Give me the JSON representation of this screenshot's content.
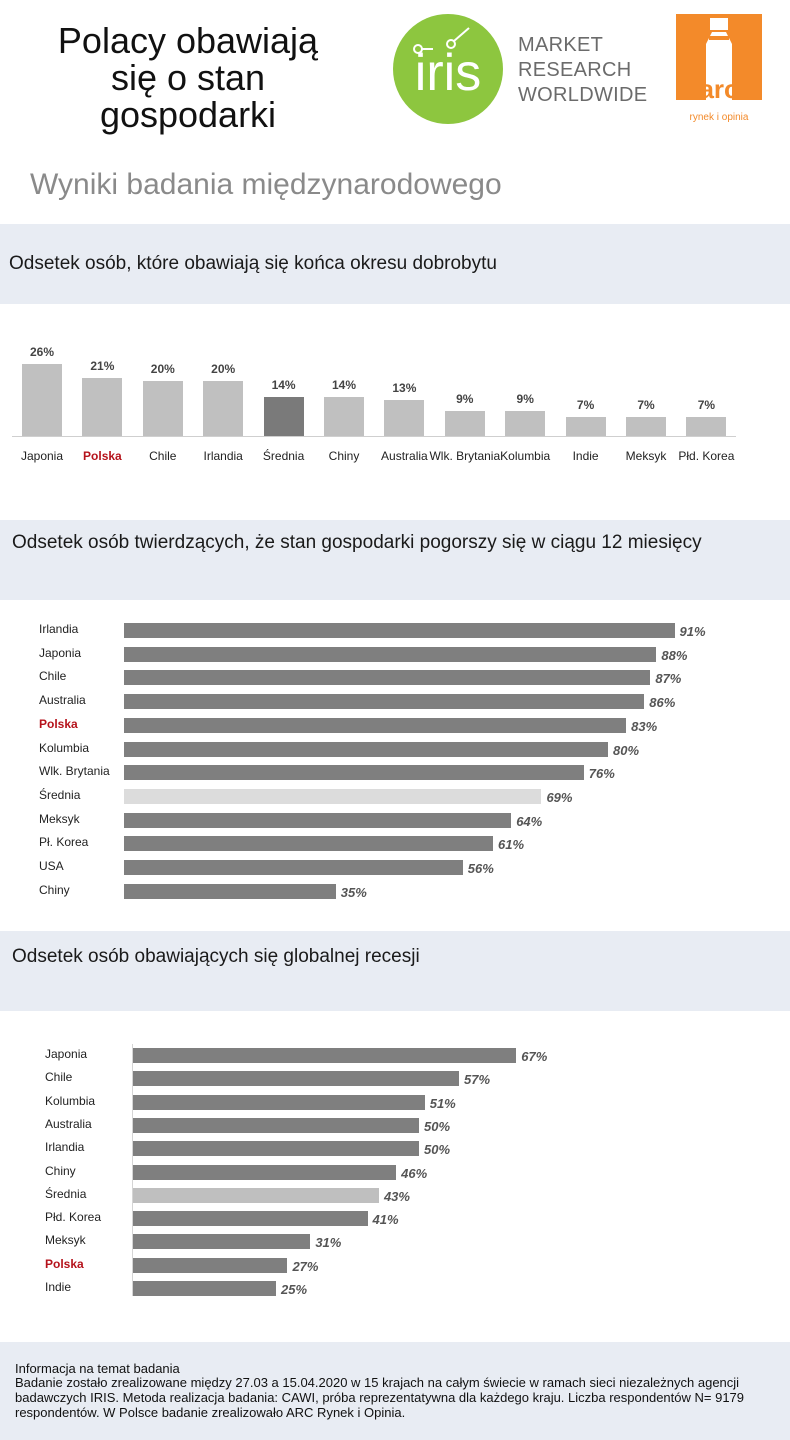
{
  "header": {
    "title_lines": [
      "Polacy obawiają",
      "się o stan",
      "gospodarki"
    ],
    "subtitle": "Wyniki badania międzynarodowego",
    "iris_logo_text": "iris",
    "iris_tagline": [
      "MARKET",
      "RESEARCH",
      "WORLDWIDE"
    ],
    "arc_logo_text": "arc",
    "arc_logo_sub": "rynek i opinia"
  },
  "colors": {
    "bar_main": "#7f7f7f",
    "bar_light": "#c0c0c0",
    "bar_average": "#7a7a7a",
    "highlight_text": "#b5121b",
    "band": "#e8ecf3",
    "iris_green": "#8dc63f",
    "arc_orange": "#f38a2a"
  },
  "sections": [
    {
      "title": "Odsetek osób, które obawiają się końca okresu dobrobytu"
    },
    {
      "title": "Odsetek osób twierdzących, że stan gospodarki pogorszy się w ciągu 12 miesięcy"
    },
    {
      "title": "Odsetek osób obawiających się globalnej recesji"
    }
  ],
  "chart_data": [
    {
      "type": "bar",
      "orientation": "vertical",
      "categories": [
        "Japonia",
        "Polska",
        "Chile",
        "Irlandia",
        "Średnia",
        "Chiny",
        "Australia",
        "Wlk. Brytania",
        "Kolumbia",
        "Indie",
        "Meksyk",
        "Płd. Korea"
      ],
      "values": [
        26,
        21,
        20,
        20,
        14,
        14,
        13,
        9,
        9,
        7,
        7,
        7
      ],
      "labels": [
        "26%",
        "21%",
        "20%",
        "20%",
        "14%",
        "14%",
        "13%",
        "9%",
        "9%",
        "7%",
        "7%",
        "7%"
      ],
      "highlight": "Polska",
      "average": "Średnia",
      "ylim": [
        0,
        30
      ]
    },
    {
      "type": "bar",
      "orientation": "horizontal",
      "categories": [
        "Irlandia",
        "Japonia",
        "Chile",
        "Australia",
        "Polska",
        "Kolumbia",
        "Wlk. Brytania",
        "Średnia",
        "Meksyk",
        "Pł. Korea",
        "USA",
        "Chiny"
      ],
      "values": [
        91,
        88,
        87,
        86,
        83,
        80,
        76,
        69,
        64,
        61,
        56,
        35
      ],
      "labels": [
        "91%",
        "88%",
        "87%",
        "86%",
        "83%",
        "80%",
        "76%",
        "69%",
        "64%",
        "61%",
        "56%",
        "35%"
      ],
      "highlight": "Polska",
      "average": "Średnia",
      "xlim": [
        0,
        100
      ]
    },
    {
      "type": "bar",
      "orientation": "horizontal",
      "categories": [
        "Japonia",
        "Chile",
        "Kolumbia",
        "Australia",
        "Irlandia",
        "Chiny",
        "Średnia",
        "Płd. Korea",
        "Meksyk",
        "Polska",
        "Indie"
      ],
      "values": [
        67,
        57,
        51,
        50,
        50,
        46,
        43,
        41,
        31,
        27,
        25
      ],
      "labels": [
        "67%",
        "57%",
        "51%",
        "50%",
        "50%",
        "46%",
        "43%",
        "41%",
        "31%",
        "27%",
        "25%"
      ],
      "highlight": "Polska",
      "average": "Średnia",
      "xlim": [
        0,
        70
      ]
    }
  ],
  "footer": {
    "title": "Informacja na temat badania",
    "text": "Badanie zostało zrealizowane między 27.03 a 15.04.2020 w 15 krajach na całym świecie w ramach sieci niezależnych agencji badawczych IRIS. Metoda realizacja badania: CAWI, próba reprezentatywna dla każdego kraju. Liczba respondentów N= 9179 respondentów. W Polsce badanie zrealizowało ARC Rynek i Opinia."
  }
}
